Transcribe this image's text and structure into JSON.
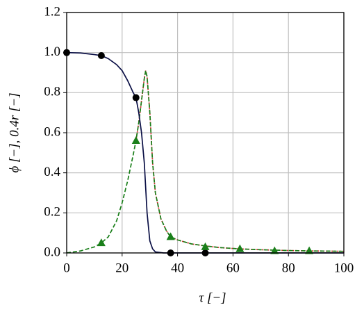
{
  "chart_data": {
    "type": "line",
    "xlabel": "τ [−]",
    "ylabel": "ϕ [−], 0.4r [−]",
    "xlim": [
      0,
      100
    ],
    "xticks": [
      0,
      20,
      40,
      60,
      80,
      100
    ],
    "ylim": [
      0,
      1.2
    ],
    "yticks": [
      {
        "value": 0,
        "label": "0.0"
      },
      {
        "value": 0.2,
        "label": "0.2"
      },
      {
        "value": 0.4,
        "label": "0.4"
      },
      {
        "value": 0.6,
        "label": "0.6"
      },
      {
        "value": 0.8,
        "label": "0.8"
      },
      {
        "value": 1,
        "label": "1.0"
      },
      {
        "value": 1.2,
        "label": "1.2"
      }
    ],
    "grid": true,
    "series": [
      {
        "color": "#d62728",
        "line_style": "dotted",
        "x": [
          25,
          26,
          27,
          28,
          28.5,
          29,
          30,
          31,
          32,
          34,
          36,
          37.5,
          40,
          45,
          50,
          55,
          62.5,
          70,
          75,
          80,
          87.5,
          95,
          100
        ],
        "values": [
          0.56,
          0.65,
          0.76,
          0.87,
          0.91,
          0.88,
          0.7,
          0.45,
          0.3,
          0.17,
          0.11,
          0.08,
          0.065,
          0.045,
          0.035,
          0.027,
          0.02,
          0.016,
          0.014,
          0.012,
          0.01,
          0.009,
          0.008
        ]
      },
      {
        "color": "#1a7f1a",
        "line_style": "dashed",
        "x": [
          0,
          5,
          10,
          12.5,
          15,
          18,
          20,
          22,
          24,
          25,
          26,
          27,
          28,
          28.5,
          29,
          30,
          31,
          32,
          34,
          36,
          37.5,
          40,
          45,
          50,
          55,
          62.5,
          70,
          75,
          80,
          87.5,
          95,
          100
        ],
        "values": [
          0,
          0.01,
          0.03,
          0.05,
          0.08,
          0.16,
          0.25,
          0.36,
          0.49,
          0.56,
          0.65,
          0.76,
          0.87,
          0.91,
          0.88,
          0.7,
          0.45,
          0.3,
          0.17,
          0.11,
          0.08,
          0.065,
          0.045,
          0.035,
          0.027,
          0.02,
          0.016,
          0.014,
          0.012,
          0.01,
          0.009,
          0.008
        ]
      },
      {
        "color": "#0a0f45",
        "line_style": "solid",
        "x": [
          0,
          5,
          10,
          12.5,
          15,
          18,
          20,
          22,
          24,
          25,
          26,
          27,
          28,
          29,
          30,
          31,
          32,
          35,
          40,
          50,
          60,
          80,
          100
        ],
        "values": [
          1.0,
          0.998,
          0.99,
          0.985,
          0.97,
          0.94,
          0.91,
          0.86,
          0.8,
          0.775,
          0.7,
          0.6,
          0.45,
          0.2,
          0.06,
          0.02,
          0.005,
          0,
          0,
          0,
          0,
          0,
          0
        ]
      },
      {
        "color": "#000000",
        "marker": "circle",
        "x": [
          0,
          12.5,
          25,
          37.5,
          50
        ],
        "values": [
          1.0,
          0.985,
          0.775,
          0,
          0
        ]
      },
      {
        "color": "#1a7f1a",
        "marker": "triangle",
        "x": [
          12.5,
          25,
          37.5,
          50,
          62.5,
          75,
          87.5
        ],
        "values": [
          0.05,
          0.56,
          0.08,
          0.03,
          0.02,
          0.01,
          0.01
        ]
      }
    ]
  }
}
